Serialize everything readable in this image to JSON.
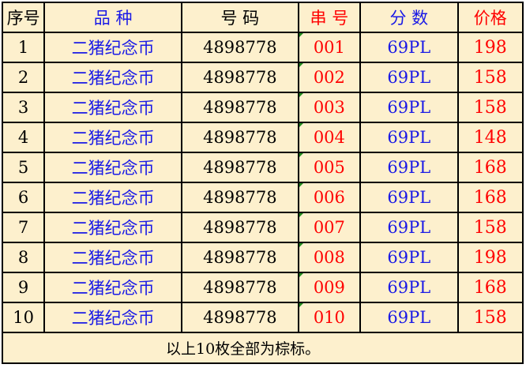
{
  "headers": [
    "序号",
    "品 种",
    "号 码",
    "串 号",
    "分 数",
    "价格"
  ],
  "header_colors": [
    "black",
    "blue",
    "black",
    "red",
    "blue",
    "red"
  ],
  "rows": [
    {
      "no": "1",
      "variety": "二猪纪念币",
      "code": "4898778",
      "serial": "001",
      "grade": "69PL",
      "price": "198"
    },
    {
      "no": "2",
      "variety": "二猪纪念币",
      "code": "4898778",
      "serial": "002",
      "grade": "69PL",
      "price": "158"
    },
    {
      "no": "3",
      "variety": "二猪纪念币",
      "code": "4898778",
      "serial": "003",
      "grade": "69PL",
      "price": "158"
    },
    {
      "no": "4",
      "variety": "二猪纪念币",
      "code": "4898778",
      "serial": "004",
      "grade": "69PL",
      "price": "148"
    },
    {
      "no": "5",
      "variety": "二猪纪念币",
      "code": "4898778",
      "serial": "005",
      "grade": "69PL",
      "price": "168"
    },
    {
      "no": "6",
      "variety": "二猪纪念币",
      "code": "4898778",
      "serial": "006",
      "grade": "69PL",
      "price": "168"
    },
    {
      "no": "7",
      "variety": "二猪纪念币",
      "code": "4898778",
      "serial": "007",
      "grade": "69PL",
      "price": "158"
    },
    {
      "no": "8",
      "variety": "二猪纪念币",
      "code": "4898778",
      "serial": "008",
      "grade": "69PL",
      "price": "198"
    },
    {
      "no": "9",
      "variety": "二猪纪念币",
      "code": "4898778",
      "serial": "009",
      "grade": "69PL",
      "price": "168"
    },
    {
      "no": "10",
      "variety": "二猪纪念币",
      "code": "4898778",
      "serial": "010",
      "grade": "69PL",
      "price": "158"
    }
  ],
  "footer": "以上10枚全部为棕标。",
  "colors": {
    "background": "#fdf0cd",
    "blue": "#1a1ae6",
    "red": "#ff0000",
    "note_marker": "#1e8a1e"
  }
}
